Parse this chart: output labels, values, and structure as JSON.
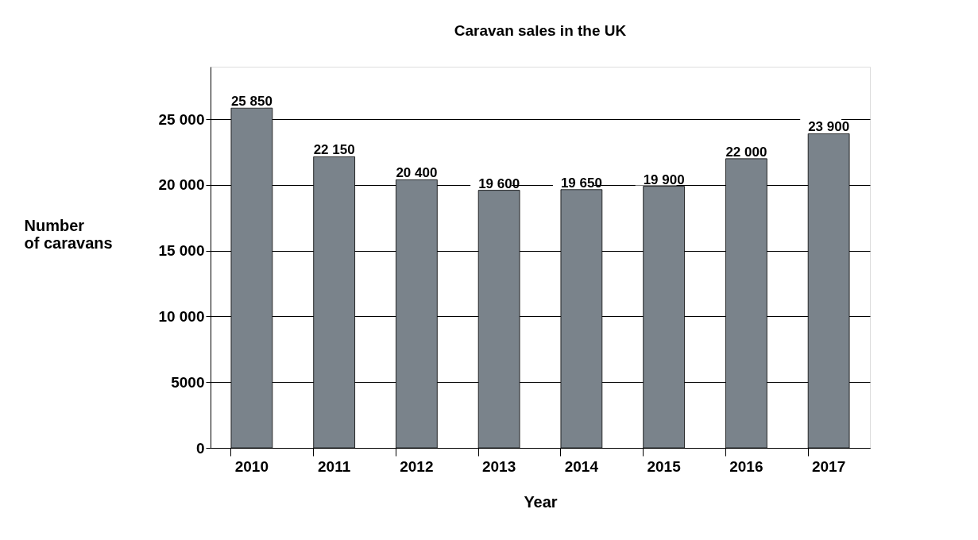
{
  "chart_data": {
    "type": "bar",
    "title": "Caravan sales in the UK",
    "xlabel": "Year",
    "ylabel": "Number of caravans",
    "categories": [
      "2010",
      "2011",
      "2012",
      "2013",
      "2014",
      "2015",
      "2016",
      "2017"
    ],
    "values": [
      25850,
      22150,
      20400,
      19600,
      19650,
      19900,
      22000,
      23900
    ],
    "value_labels": [
      "25 850",
      "22 150",
      "20 400",
      "19 600",
      "19 650",
      "19 900",
      "22 000",
      "23 900"
    ],
    "color": "#7a838b",
    "ylim": [
      0,
      29000
    ],
    "yticks": [
      0,
      5000,
      {
        "value": 10000,
        "label": "10 000"
      },
      {
        "value": 15000,
        "label": "15 000"
      },
      {
        "value": 20000,
        "label": "20 000"
      },
      {
        "value": 25000,
        "label": "25 000"
      }
    ],
    "grid": "y"
  }
}
